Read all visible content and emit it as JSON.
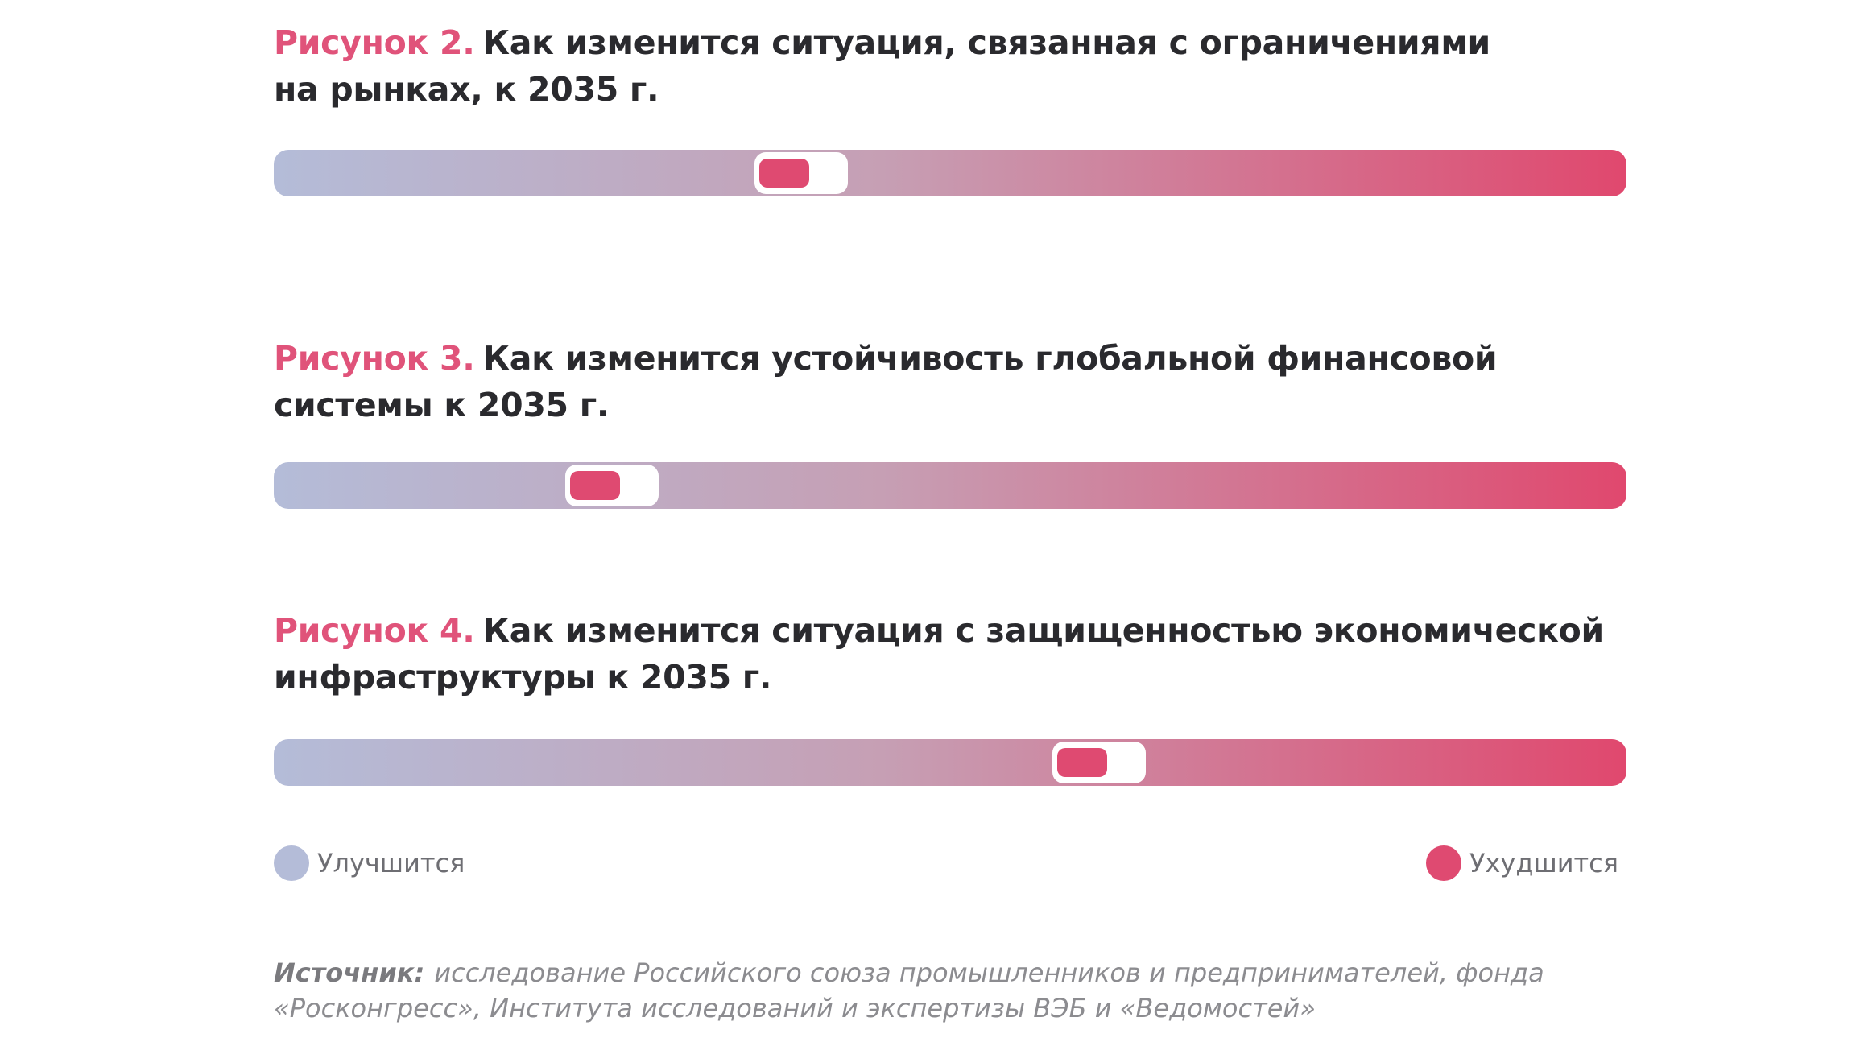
{
  "figures": [
    {
      "label": "Рисунок 2.",
      "title_line1": "Как изменится ситуация, связанная с ограничениями",
      "title_line2": "на рынках, к 2035 г."
    },
    {
      "label": "Рисунок 3.",
      "title_line1": "Как изменится устойчивость глобальной финансовой",
      "title_line2": "системы к 2035 г."
    },
    {
      "label": "Рисунок 4.",
      "title_line1": "Как изменится ситуация с защищенностью экономической",
      "title_line2": "инфраструктуры к 2035 г."
    }
  ],
  "legend": {
    "improve": "Улучшится",
    "worsen": "Ухудшится"
  },
  "colors": {
    "improve": "#b4bcd8",
    "worsen": "#df4a71",
    "accent_label": "#e0537a"
  },
  "source": {
    "label": "Источник:",
    "line1": "исследование Российского союза промышленников и предпринимателей, фонда",
    "line2": "«Росконгресс», Института исследований и экспертизы ВЭБ и «Ведомостей»"
  },
  "chart_data": [
    {
      "type": "bar",
      "scale": [
        "Улучшится",
        "Ухудшится"
      ],
      "value": 0.39,
      "range": [
        0,
        1
      ]
    },
    {
      "type": "bar",
      "scale": [
        "Улучшится",
        "Ухудшится"
      ],
      "value": 0.25,
      "range": [
        0,
        1
      ]
    },
    {
      "type": "bar",
      "scale": [
        "Улучшится",
        "Ухудшится"
      ],
      "value": 0.61,
      "range": [
        0,
        1
      ]
    }
  ]
}
